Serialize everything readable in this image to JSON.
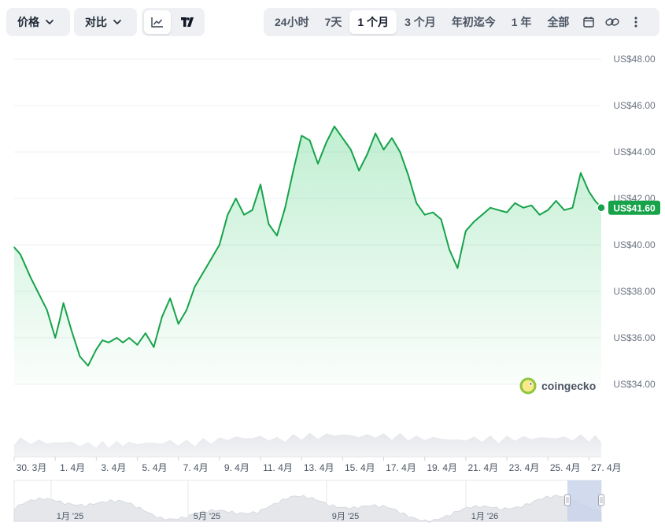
{
  "toolbar": {
    "price_label": "价格",
    "compare_label": "对比",
    "ranges": [
      "24小时",
      "7天",
      "1 个月",
      "3 个月",
      "年初迄今",
      "1 年",
      "全部"
    ],
    "active_range": "1 个月",
    "icons": [
      "line-chart-icon",
      "tradingview-icon",
      "calendar-icon",
      "link-icon",
      "more-vertical-icon"
    ]
  },
  "brand": {
    "logo_text": "coingecko"
  },
  "colors": {
    "line": "#16a34a",
    "fill": "#22c55e",
    "badge": "#16a34a",
    "volume": "#e5e7eb",
    "navigator_sel": "#c7d2ea"
  },
  "chart_data": {
    "type": "area",
    "currency_prefix": "US$",
    "y_ticks": [
      "US$48.00",
      "US$46.00",
      "US$44.00",
      "US$42.00",
      "US$40.00",
      "US$38.00",
      "US$36.00",
      "US$34.00"
    ],
    "ylim": [
      34,
      48
    ],
    "x_ticks": [
      "30. 3月",
      "1. 4月",
      "3. 4月",
      "5. 4月",
      "7. 4月",
      "9. 4月",
      "11. 4月",
      "13. 4月",
      "15. 4月",
      "17. 4月",
      "19. 4月",
      "21. 4月",
      "23. 4月",
      "25. 4月",
      "27. 4月"
    ],
    "x_tick_days": [
      0,
      2,
      4,
      6,
      8,
      10,
      12,
      14,
      16,
      18,
      20,
      22,
      24,
      26,
      28
    ],
    "series": [
      {
        "days": [
          0,
          0.3,
          0.8,
          1.2,
          1.6,
          2.0,
          2.2,
          2.4,
          2.8,
          3.2,
          3.6,
          4.0,
          4.3,
          4.6,
          5.0,
          5.3,
          5.6,
          6.0,
          6.4,
          6.8,
          7.2,
          7.6,
          8.0,
          8.4,
          8.8,
          9.2,
          9.6,
          10.0,
          10.4,
          10.8,
          11.2,
          11.6,
          12.0,
          12.4,
          12.8,
          13.2,
          13.6,
          14.0,
          14.4,
          14.8,
          15.2,
          15.6,
          16.0,
          16.4,
          16.8,
          17.2,
          17.6,
          18.0,
          18.4,
          18.8,
          19.2,
          19.6,
          20.0,
          20.4,
          20.8,
          21.2,
          21.6,
          22.0,
          22.4,
          22.8,
          23.2,
          23.6,
          24.0,
          24.4,
          24.8,
          25.2,
          25.6,
          26.0,
          26.4,
          26.8,
          27.2,
          27.6,
          28.0,
          28.3,
          28.6
        ],
        "values": [
          39.9,
          39.6,
          38.6,
          37.9,
          37.2,
          36.0,
          36.7,
          37.5,
          36.3,
          35.2,
          34.8,
          35.5,
          35.9,
          35.8,
          36.0,
          35.8,
          36.0,
          35.7,
          36.2,
          35.6,
          36.9,
          37.7,
          36.6,
          37.2,
          38.2,
          38.8,
          39.4,
          40.0,
          41.3,
          42.0,
          41.3,
          41.5,
          42.6,
          40.9,
          40.4,
          41.6,
          43.2,
          44.7,
          44.5,
          43.5,
          44.4,
          45.1,
          44.6,
          44.1,
          43.2,
          43.9,
          44.8,
          44.1,
          44.6,
          44.0,
          43.0,
          41.8,
          41.3,
          41.4,
          41.1,
          39.8,
          39.0,
          40.6,
          41.0,
          41.3,
          41.6,
          41.5,
          41.4,
          41.8,
          41.6,
          41.7,
          41.3,
          41.5,
          41.9,
          41.5,
          41.6,
          43.1,
          42.3,
          41.9,
          41.6
        ]
      }
    ],
    "last_value_label": "US$41.60",
    "grid": true,
    "navigator_labels": [
      "1月 '25",
      "5月 '25",
      "9月 '25",
      "1月 '26"
    ]
  }
}
